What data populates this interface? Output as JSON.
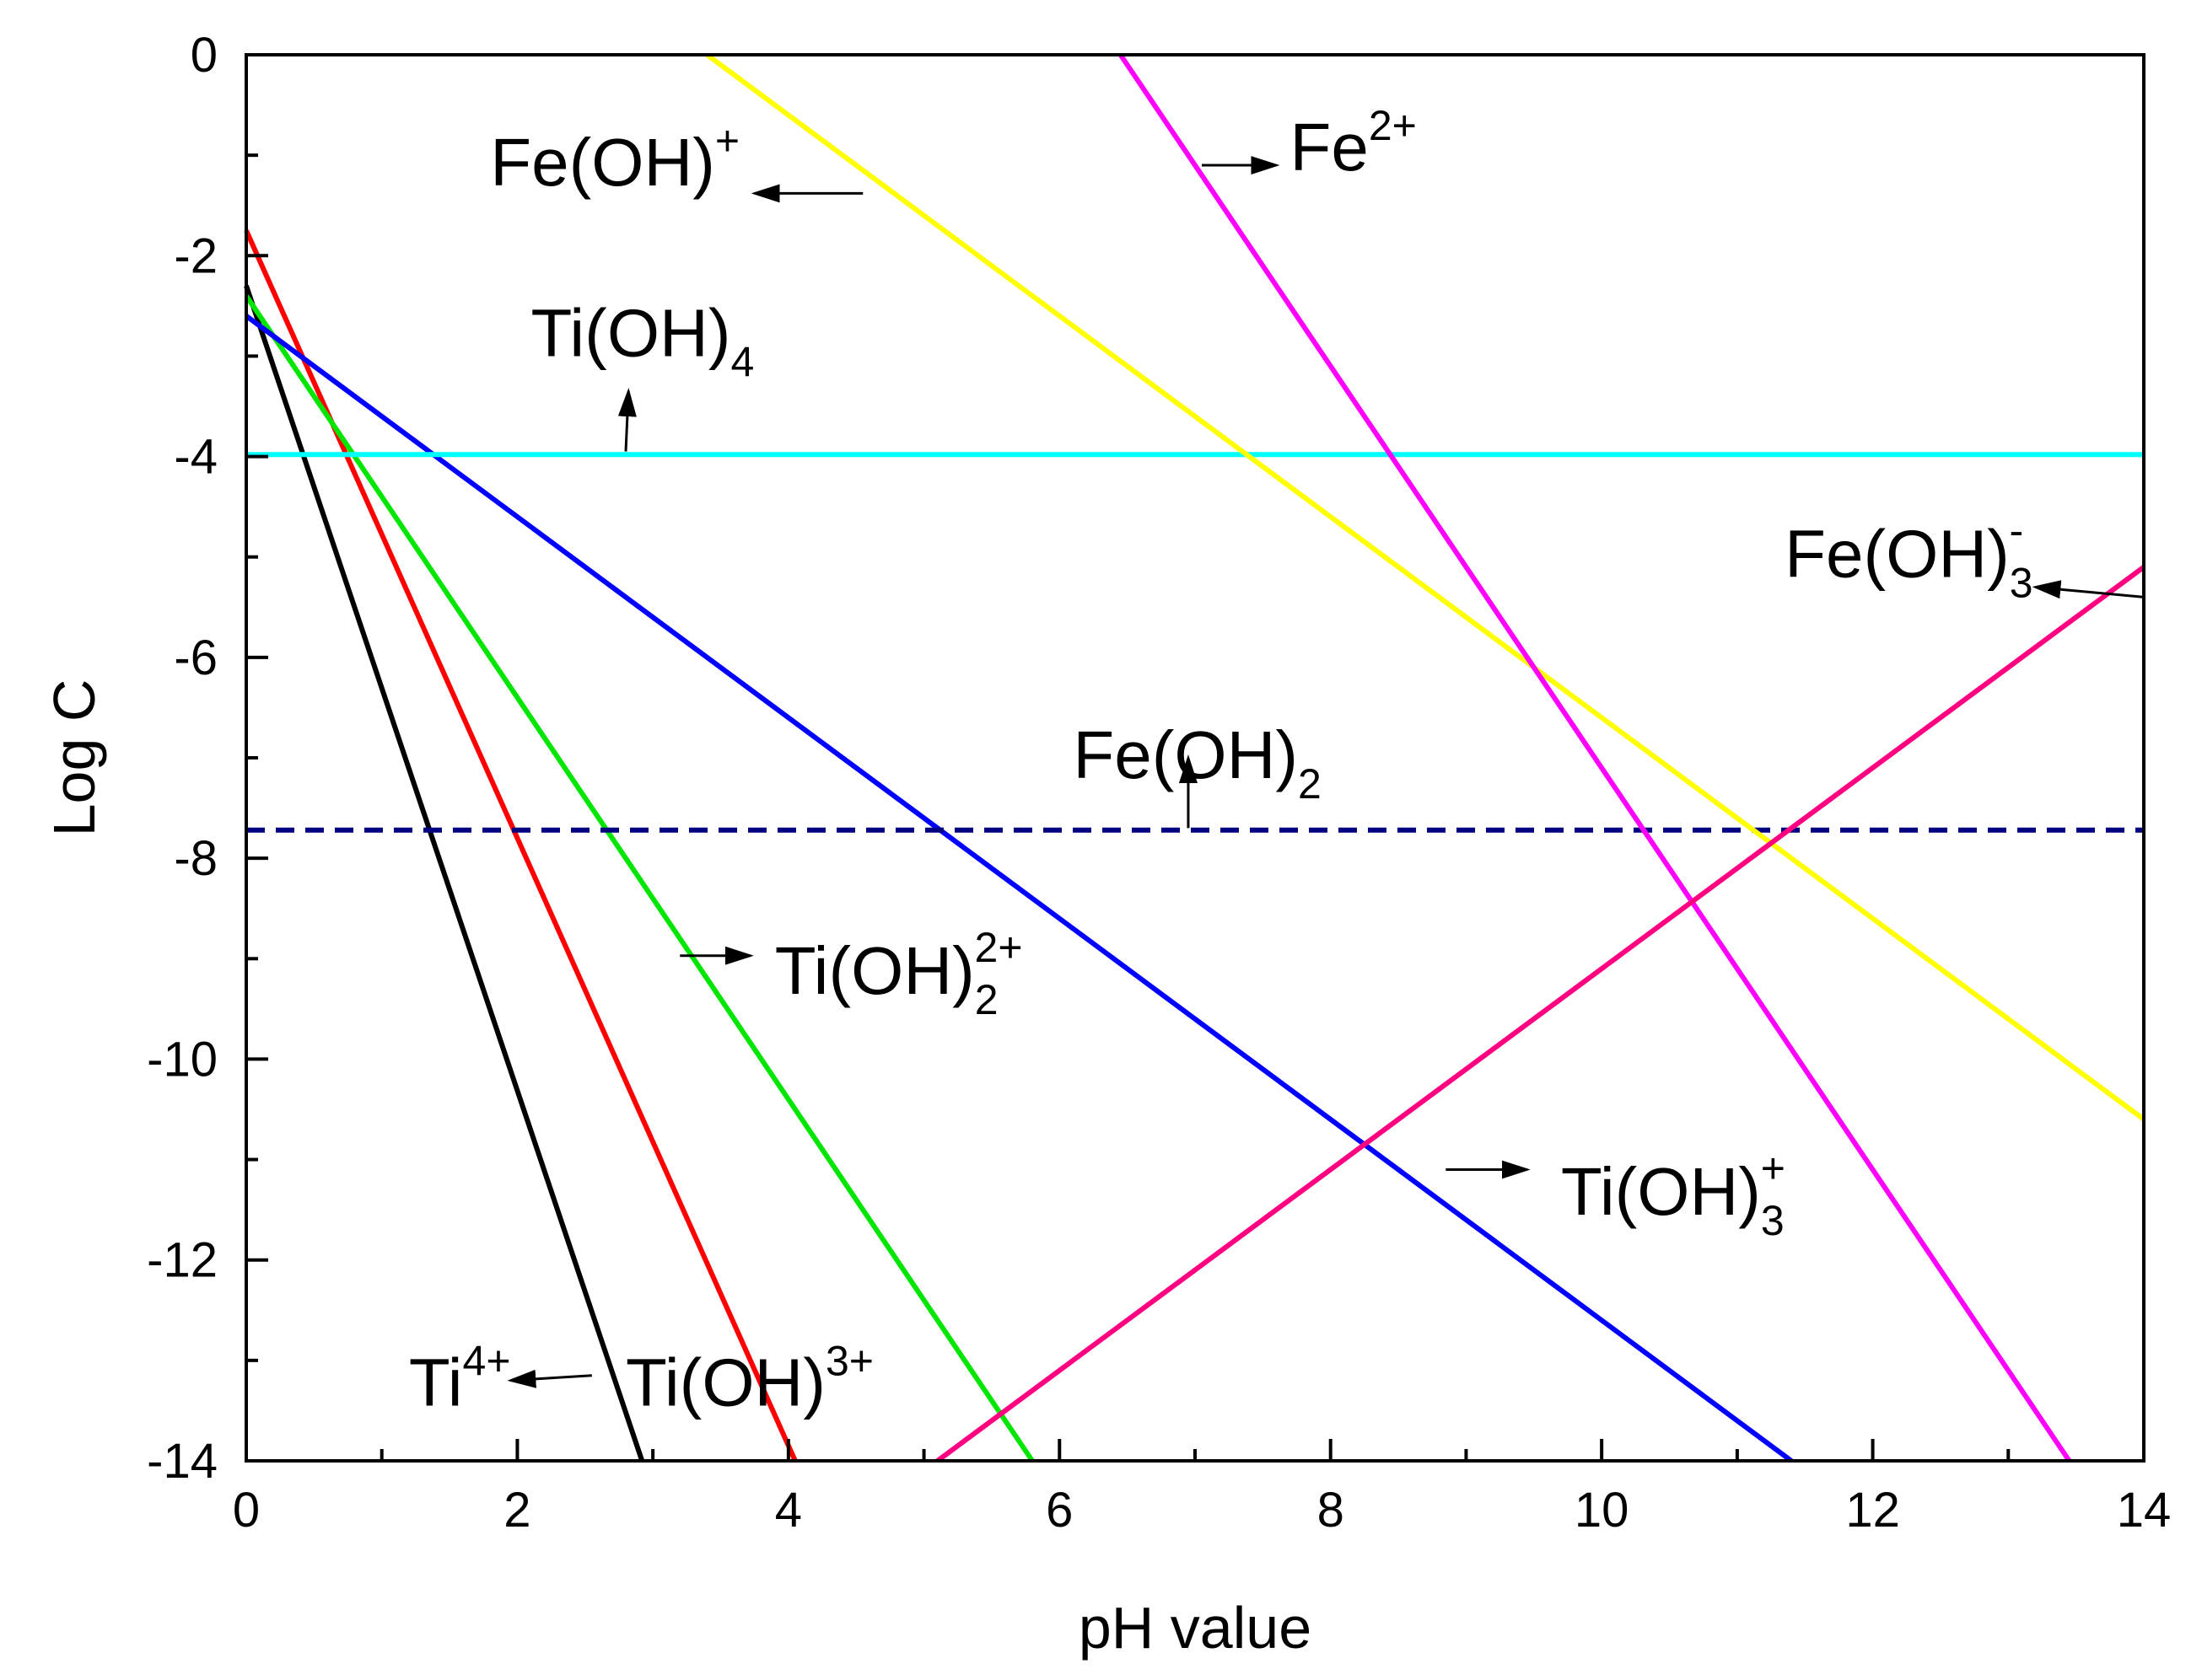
{
  "chart_data": {
    "type": "line",
    "title": "",
    "xlabel": "pH value",
    "ylabel": "Log C",
    "xlim": [
      0,
      14
    ],
    "ylim": [
      -14,
      0
    ],
    "xticks": [
      0,
      2,
      4,
      6,
      8,
      10,
      12,
      14
    ],
    "yticks": [
      0,
      -2,
      -4,
      -6,
      -8,
      -10,
      -12,
      -14
    ],
    "xtick_labels": [
      "0",
      "2",
      "4",
      "6",
      "8",
      "10",
      "12",
      "14"
    ],
    "ytick_labels": [
      "0",
      "-2",
      "-4",
      "-6",
      "-8",
      "-10",
      "-12",
      "-14"
    ],
    "grid": false,
    "series": [
      {
        "name": "Ti4+",
        "color": "#000000",
        "style": "solid",
        "x": [
          0,
          2.92
        ],
        "y": [
          -2.3,
          -14
        ]
      },
      {
        "name": "Ti(OH)3+",
        "color": "#ff0000",
        "style": "solid",
        "x": [
          0,
          4.05
        ],
        "y": [
          -1.75,
          -14
        ]
      },
      {
        "name": "Ti(OH)2 2+",
        "color": "#00e600",
        "style": "solid",
        "x": [
          0,
          5.8
        ],
        "y": [
          -2.4,
          -14
        ]
      },
      {
        "name": "Ti(OH)3 +",
        "color": "#0000ff",
        "style": "solid",
        "x": [
          0,
          11.4
        ],
        "y": [
          -2.6,
          -14
        ]
      },
      {
        "name": "Ti(OH)4",
        "color": "#00ffff",
        "style": "solid",
        "x": [
          0,
          14
        ],
        "y": [
          -3.98,
          -3.98
        ]
      },
      {
        "name": "Fe(OH)2",
        "color": "#000080",
        "style": "dashed",
        "x": [
          0,
          14
        ],
        "y": [
          -7.72,
          -7.72
        ]
      },
      {
        "name": "Fe(OH)+",
        "color": "#ffff00",
        "style": "solid",
        "x": [
          3.4,
          14
        ],
        "y": [
          0,
          -10.6
        ]
      },
      {
        "name": "Fe2+",
        "color": "#ff00ff",
        "style": "solid",
        "x": [
          6.45,
          13.45
        ],
        "y": [
          0,
          -14
        ]
      },
      {
        "name": "Fe(OH)3 -",
        "color": "#ff0080",
        "style": "solid",
        "x": [
          5.1,
          14
        ],
        "y": [
          -14,
          -5.1
        ]
      }
    ],
    "annotations": [
      {
        "base": "Fe(OH)",
        "sub": "",
        "sup": "+",
        "x": 1.8,
        "y": -1.3,
        "arrow_from": [
          4.55,
          -1.38
        ],
        "arrow_to": [
          3.75,
          -1.38
        ]
      },
      {
        "base": "Fe",
        "sub": "",
        "sup": "2+",
        "x": 7.7,
        "y": -1.15,
        "arrow_from": [
          7.05,
          -1.1
        ],
        "arrow_to": [
          7.6,
          -1.1
        ]
      },
      {
        "base": "Ti(OH)",
        "sub": "4",
        "sup": "",
        "x": 2.1,
        "y": -3.0,
        "arrow_from": [
          2.8,
          -3.95
        ],
        "arrow_to": [
          2.82,
          -3.35
        ]
      },
      {
        "base": "Fe(OH)",
        "sub": "3",
        "sup": "-",
        "x": 11.35,
        "y": -5.2,
        "arrow_from": [
          14,
          -5.4
        ],
        "arrow_to": [
          13.2,
          -5.3
        ]
      },
      {
        "base": "Fe(OH)",
        "sub": "2",
        "sup": "",
        "x": 6.1,
        "y": -7.2,
        "arrow_from": [
          6.95,
          -7.7
        ],
        "arrow_to": [
          6.95,
          -7.0
        ]
      },
      {
        "base": "Ti(OH)",
        "sub": "2",
        "sup": "2+",
        "x": 3.9,
        "y": -9.35,
        "arrow_from": [
          3.2,
          -8.97
        ],
        "arrow_to": [
          3.72,
          -8.97
        ]
      },
      {
        "base": "Ti(OH)",
        "sub": "3",
        "sup": "+",
        "x": 9.7,
        "y": -11.55,
        "arrow_from": [
          8.85,
          -11.1
        ],
        "arrow_to": [
          9.45,
          -11.1
        ]
      },
      {
        "base": "Ti",
        "sub": "",
        "sup": "4+",
        "x": 1.2,
        "y": -13.45,
        "arrow_from": [
          2.55,
          -13.15
        ],
        "arrow_to": [
          1.95,
          -13.2
        ]
      },
      {
        "base": "Ti(OH)",
        "sub": "",
        "sup": "3+",
        "x": 2.8,
        "y": -13.45,
        "arrow_from": null,
        "arrow_to": null
      }
    ]
  }
}
